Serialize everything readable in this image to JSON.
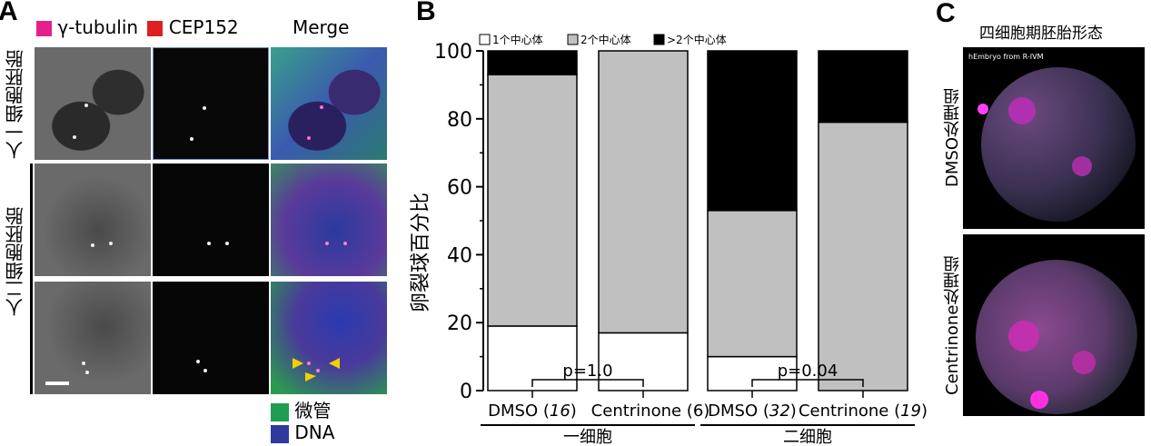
{
  "panel_a": {
    "label": "A",
    "legend": [
      {
        "label": "γ-tubulin",
        "color": "#e6208a"
      },
      {
        "label": "CEP152",
        "color": "#e02020"
      }
    ],
    "merge_label": "Merge",
    "row_labels": [
      "人一细胞胚胎",
      "人二细胞胚胎"
    ],
    "bottom_legend": [
      {
        "label": "微管",
        "color": "#1e9e50"
      },
      {
        "label": "DNA",
        "color": "#2e3a9e"
      }
    ]
  },
  "panel_b": {
    "label": "B",
    "group_labels": [
      "一细胞",
      "二细胞"
    ],
    "pvalues": [
      "p=1.0",
      "p=0.04"
    ]
  },
  "panel_c": {
    "label": "C",
    "title": "四细胞期胚胎形态",
    "inset_text": "hEmbryo from R-IVM",
    "row_labels": [
      "DMSO处理组",
      "Centrinone处理组"
    ]
  },
  "chart_data": {
    "type": "bar",
    "stacked": true,
    "ylabel": "卵裂球百分比",
    "ylim": [
      0,
      100
    ],
    "yticks": [
      0,
      20,
      40,
      60,
      80,
      100
    ],
    "categories": [
      {
        "name": "DMSO",
        "n": "16",
        "n_italic": true
      },
      {
        "name": "Centrinone",
        "n": "6",
        "n_italic": false
      },
      {
        "name": "DMSO",
        "n": "32",
        "n_italic": true
      },
      {
        "name": "Centrinone",
        "n": "19",
        "n_italic": true
      }
    ],
    "series": [
      {
        "name": "1个中心体",
        "color": "#ffffff",
        "values": [
          19,
          17,
          10,
          0
        ]
      },
      {
        "name": "2个中心体",
        "color": "#c0c0c0",
        "values": [
          74,
          83,
          43,
          79
        ]
      },
      {
        "name": ">2个中心体",
        "color": "#000000",
        "values": [
          7,
          0,
          47,
          21
        ]
      }
    ],
    "legend_position": "top"
  }
}
